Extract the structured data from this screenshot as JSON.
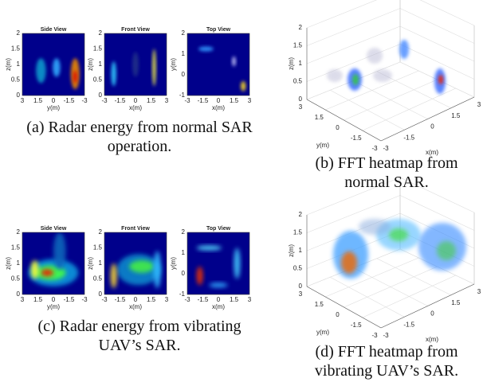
{
  "panels": [
    {
      "caption": "(a) Radar energy from normal SAR operation.",
      "subplots": [
        {
          "title": "Side View",
          "xlabel": "y(m)",
          "ylabel": "z(m)",
          "xticks": [
            "3",
            "1.5",
            "0",
            "-1.5",
            "-3"
          ],
          "yticks": [
            "0",
            "0.5",
            "1",
            "1.5",
            "2"
          ]
        },
        {
          "title": "Front View",
          "xlabel": "x(m)",
          "ylabel": "z(m)",
          "xticks": [
            "-3",
            "-1.5",
            "0",
            "1.5",
            "3"
          ],
          "yticks": [
            "0",
            "0.5",
            "1",
            "1.5",
            "2"
          ]
        },
        {
          "title": "Top View",
          "xlabel": "x(m)",
          "ylabel": "y(m)",
          "xticks": [
            "-3",
            "-1.5",
            "0",
            "1.5",
            "3"
          ],
          "yticks": [
            "-1",
            "0",
            "1",
            "2"
          ]
        }
      ]
    },
    {
      "caption": "(b) FFT heatmap from normal SAR.",
      "plot3d": {
        "xlabel": "x(m)",
        "ylabel": "y(m)",
        "zlabel": "z(m)",
        "xticks": [
          "-3",
          "-1.5",
          "0",
          "1.5",
          "3"
        ],
        "yticks": [
          "3",
          "1.5",
          "0",
          "-1.5",
          "-3"
        ],
        "zticks": [
          "0",
          "0.5",
          "1",
          "1.5",
          "2"
        ]
      }
    },
    {
      "caption": "(c) Radar energy from vibrating UAV’s SAR.",
      "subplots": [
        {
          "title": "Side View",
          "xlabel": "y(m)",
          "ylabel": "z(m)",
          "xticks": [
            "3",
            "1.5",
            "0",
            "-1.5",
            "-3"
          ],
          "yticks": [
            "0",
            "0.5",
            "1",
            "1.5",
            "2"
          ]
        },
        {
          "title": "Front View",
          "xlabel": "x(m)",
          "ylabel": "z(m)",
          "xticks": [
            "-3",
            "-1.5",
            "0",
            "1.5",
            "3"
          ],
          "yticks": [
            "0",
            "0.5",
            "1",
            "1.5",
            "2"
          ]
        },
        {
          "title": "Top View",
          "xlabel": "x(m)",
          "ylabel": "y(m)",
          "xticks": [
            "-3",
            "-1.5",
            "0",
            "1.5",
            "3"
          ],
          "yticks": [
            "-1",
            "0",
            "1",
            "2"
          ]
        }
      ]
    },
    {
      "caption": "(d) FFT heatmap from vibrating UAV’s SAR.",
      "plot3d": {
        "xlabel": "x(m)",
        "ylabel": "y(m)",
        "zlabel": "z(m)",
        "xticks": [
          "-3",
          "-1.5",
          "0",
          "1.5",
          "3"
        ],
        "yticks": [
          "3",
          "1.5",
          "0",
          "-1.5",
          "-3"
        ],
        "zticks": [
          "0",
          "0.5",
          "1",
          "1.5",
          "2"
        ]
      }
    }
  ]
}
